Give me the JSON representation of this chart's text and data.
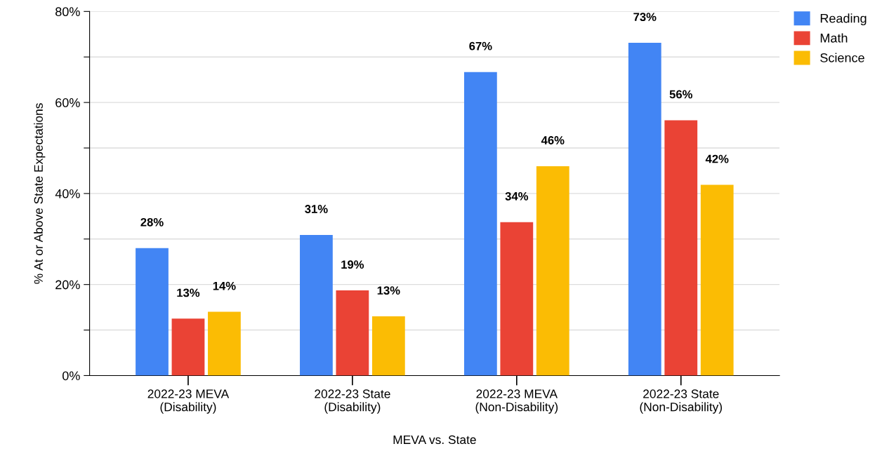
{
  "chart_data": {
    "type": "bar",
    "xlabel": "MEVA vs. State",
    "ylabel": "% At or Above State Expectations",
    "categories": [
      "2022-23 MEVA\n(Disability)",
      "2022-23 State\n(Disability)",
      "2022-23 MEVA\n(Non-Disability)",
      "2022-23 State\n(Non-Disability)"
    ],
    "series": [
      {
        "name": "Reading",
        "color": "#4285f4",
        "values": [
          28,
          30.9,
          66.7,
          73.1
        ],
        "value_labels": [
          "28%",
          "31%",
          "67%",
          "73%"
        ]
      },
      {
        "name": "Math",
        "color": "#ea4335",
        "values": [
          12.5,
          18.7,
          33.7,
          56.1
        ],
        "value_labels": [
          "13%",
          "19%",
          "34%",
          "56%"
        ]
      },
      {
        "name": "Science",
        "color": "#fbbc04",
        "values": [
          14,
          13,
          46.0,
          41.9
        ],
        "value_labels": [
          "14%",
          "13%",
          "46%",
          "42%"
        ]
      }
    ],
    "ylim": [
      0,
      80
    ],
    "yticks": [
      {
        "value": 0,
        "label": "0%"
      },
      {
        "value": 10,
        "label": null
      },
      {
        "value": 20,
        "label": "20%"
      },
      {
        "value": 30,
        "label": null
      },
      {
        "value": 40,
        "label": "40%"
      },
      {
        "value": 50,
        "label": null
      },
      {
        "value": 60,
        "label": "60%"
      },
      {
        "value": 70,
        "label": null
      },
      {
        "value": 80,
        "label": "80%"
      }
    ],
    "grid": "y",
    "legend": "top right"
  }
}
